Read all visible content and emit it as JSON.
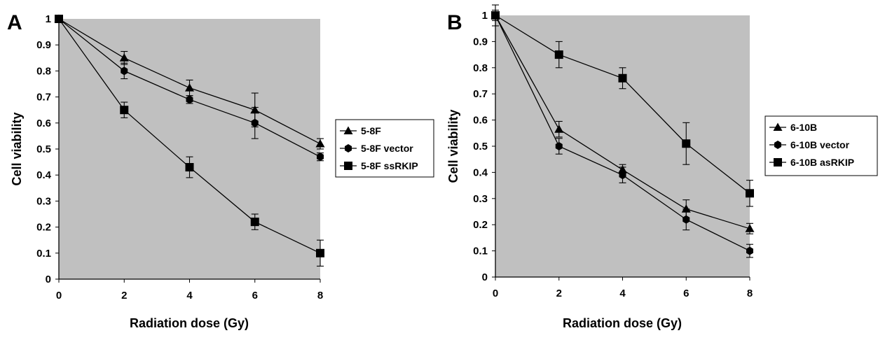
{
  "panels": [
    {
      "letter": "A",
      "chart_data": {
        "type": "line",
        "xlabel": "Radiation dose (Gy)",
        "ylabel": "Cell viability",
        "xlim": [
          0,
          8
        ],
        "ylim": [
          0,
          1
        ],
        "x_ticks": [
          "0",
          "2",
          "4",
          "6",
          "8"
        ],
        "y_ticks": [
          "0",
          "0.1",
          "0.2",
          "0.3",
          "0.4",
          "0.5",
          "0.6",
          "0.7",
          "0.8",
          "0.9",
          "1"
        ],
        "grid": false,
        "plot_background": "#c0c0c0",
        "legend_position": "right",
        "x": [
          0,
          2,
          4,
          6,
          8
        ],
        "series": [
          {
            "name": "5-8F",
            "marker": "triangle",
            "values": [
              1,
              0.85,
              0.735,
              0.65,
              0.52
            ],
            "errors": [
              0.01,
              0.025,
              0.03,
              0.065,
              0.02
            ]
          },
          {
            "name": "5-8F vector",
            "marker": "diamond",
            "values": [
              1,
              0.8,
              0.69,
              0.6,
              0.47
            ],
            "errors": [
              0.01,
              0.03,
              0.015,
              0.06,
              0.015
            ]
          },
          {
            "name": "5-8F ssRKIP",
            "marker": "square",
            "values": [
              1,
              0.65,
              0.43,
              0.22,
              0.1
            ],
            "errors": [
              0.01,
              0.03,
              0.04,
              0.03,
              0.05
            ]
          }
        ]
      }
    },
    {
      "letter": "B",
      "chart_data": {
        "type": "line",
        "xlabel": "Radiation dose (Gy)",
        "ylabel": "Cell viability",
        "xlim": [
          0,
          8
        ],
        "ylim": [
          0,
          1
        ],
        "x_ticks": [
          "0",
          "2",
          "4",
          "6",
          "8"
        ],
        "y_ticks": [
          "0",
          "0.1",
          "0.2",
          "0.3",
          "0.4",
          "0.5",
          "0.6",
          "0.7",
          "0.8",
          "0.9",
          "1"
        ],
        "grid": false,
        "plot_background": "#c0c0c0",
        "legend_position": "right",
        "x": [
          0,
          2,
          4,
          6,
          8
        ],
        "series": [
          {
            "name": "6-10B",
            "marker": "triangle",
            "values": [
              1,
              0.565,
              0.41,
              0.26,
              0.185
            ],
            "errors": [
              0.04,
              0.03,
              0.02,
              0.035,
              0.02
            ]
          },
          {
            "name": "6-10B vector",
            "marker": "diamond",
            "values": [
              1,
              0.5,
              0.39,
              0.22,
              0.1
            ],
            "errors": [
              0.02,
              0.03,
              0.03,
              0.04,
              0.025
            ]
          },
          {
            "name": "6-10B asRKIP",
            "marker": "square",
            "values": [
              1,
              0.85,
              0.76,
              0.51,
              0.32
            ],
            "errors": [
              0.01,
              0.05,
              0.04,
              0.08,
              0.05
            ]
          }
        ]
      }
    }
  ]
}
